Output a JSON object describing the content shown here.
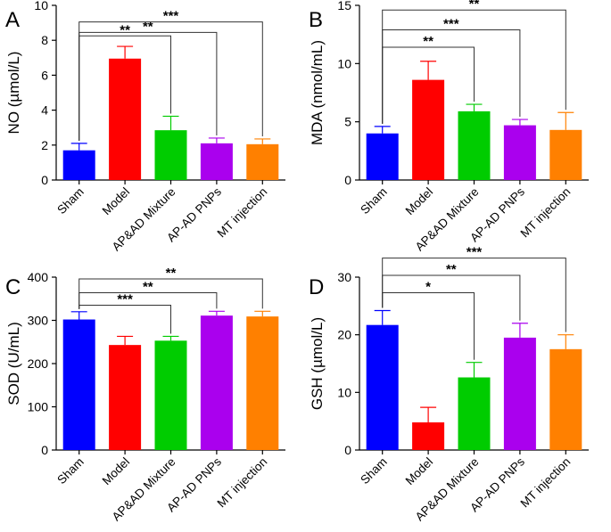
{
  "chart_data": [
    {
      "type": "bar",
      "panel": "A",
      "ylabel": "NO (µmol/L)",
      "ylim": [
        0,
        10
      ],
      "yticks": [
        0,
        2,
        4,
        6,
        8,
        10
      ],
      "categories": [
        "Sham",
        "Model",
        "AP&AD Mixture",
        "AP-AD PNPs",
        "MT injection"
      ],
      "values": [
        1.7,
        6.95,
        2.85,
        2.1,
        2.05
      ],
      "errors": [
        0.4,
        0.7,
        0.8,
        0.3,
        0.3
      ],
      "colors": [
        "#0000ff",
        "#ff0000",
        "#00cc00",
        "#aa00ee",
        "#ff8000"
      ],
      "significance": [
        {
          "from": 0,
          "to": 2,
          "label": "**",
          "y": 8.25
        },
        {
          "from": 0,
          "to": 3,
          "label": "**",
          "y": 8.45
        },
        {
          "from": 0,
          "to": 4,
          "label": "***",
          "y": 9.05
        }
      ]
    },
    {
      "type": "bar",
      "panel": "B",
      "ylabel": "MDA (nmol/mL)",
      "ylim": [
        0,
        15
      ],
      "yticks": [
        0,
        5,
        10,
        15
      ],
      "categories": [
        "Sham",
        "Model",
        "AP&AD Mixture",
        "AP-AD PNPs",
        "MT injection"
      ],
      "values": [
        4.0,
        8.6,
        5.9,
        4.7,
        4.3
      ],
      "errors": [
        0.6,
        1.6,
        0.6,
        0.5,
        1.5
      ],
      "colors": [
        "#0000ff",
        "#ff0000",
        "#00cc00",
        "#aa00ee",
        "#ff8000"
      ],
      "significance": [
        {
          "from": 0,
          "to": 2,
          "label": "**",
          "y": 11.4
        },
        {
          "from": 0,
          "to": 3,
          "label": "***",
          "y": 12.9
        },
        {
          "from": 0,
          "to": 4,
          "label": "**",
          "y": 14.6
        }
      ]
    },
    {
      "type": "bar",
      "panel": "C",
      "ylabel": "SOD (U/mL)",
      "ylim": [
        0,
        400
      ],
      "yticks": [
        0,
        100,
        200,
        300,
        400
      ],
      "categories": [
        "Sham",
        "Model",
        "AP&AD Mixture",
        "AP-AD PNPs",
        "MT injection"
      ],
      "values": [
        302,
        243,
        253,
        311,
        309
      ],
      "errors": [
        18,
        20,
        10,
        10,
        12
      ],
      "colors": [
        "#0000ff",
        "#ff0000",
        "#00cc00",
        "#aa00ee",
        "#ff8000"
      ],
      "significance": [
        {
          "from": 0,
          "to": 2,
          "label": "***",
          "y": 335
        },
        {
          "from": 0,
          "to": 3,
          "label": "**",
          "y": 364
        },
        {
          "from": 0,
          "to": 4,
          "label": "**",
          "y": 396
        }
      ]
    },
    {
      "type": "bar",
      "panel": "D",
      "ylabel": "GSH (µmol/L)",
      "ylim": [
        0,
        30
      ],
      "yticks": [
        0,
        10,
        20,
        30
      ],
      "categories": [
        "Sham",
        "Model",
        "AP&AD Mixture",
        "AP-AD PNPs",
        "MT injection"
      ],
      "values": [
        21.7,
        4.8,
        12.6,
        19.5,
        17.5
      ],
      "errors": [
        2.5,
        2.6,
        2.6,
        2.5,
        2.5
      ],
      "colors": [
        "#0000ff",
        "#ff0000",
        "#00cc00",
        "#aa00ee",
        "#ff8000"
      ],
      "significance": [
        {
          "from": 0,
          "to": 2,
          "label": "*",
          "y": 27.3
        },
        {
          "from": 0,
          "to": 3,
          "label": "**",
          "y": 30.3
        },
        {
          "from": 0,
          "to": 4,
          "label": "***",
          "y": 33.3
        }
      ]
    }
  ]
}
